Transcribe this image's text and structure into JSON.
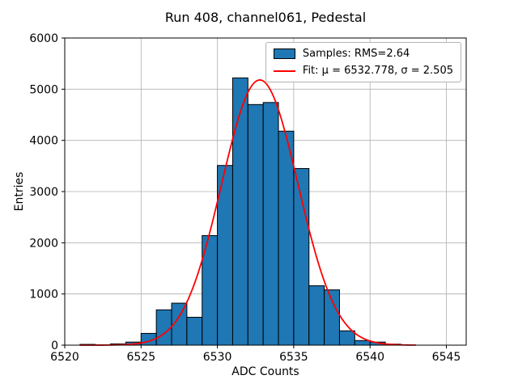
{
  "chart_data": {
    "type": "bar",
    "subtype": "histogram",
    "title": "Run 408, channel061, Pedestal",
    "xlabel": "ADC Counts",
    "ylabel": "Entries",
    "xlim": [
      6520,
      6546.3
    ],
    "ylim": [
      0,
      6000
    ],
    "xticks": [
      6520,
      6525,
      6530,
      6535,
      6540,
      6545
    ],
    "yticks": [
      0,
      1000,
      2000,
      3000,
      4000,
      5000,
      6000
    ],
    "grid": true,
    "bin_width": 1,
    "bins": [
      6521,
      6522,
      6523,
      6524,
      6525,
      6526,
      6527,
      6528,
      6529,
      6530,
      6531,
      6532,
      6533,
      6534,
      6535,
      6536,
      6537,
      6538,
      6539,
      6540,
      6541
    ],
    "counts": [
      15,
      0,
      25,
      60,
      230,
      690,
      820,
      545,
      2140,
      3510,
      5220,
      4700,
      4740,
      4180,
      3450,
      1160,
      1080,
      280,
      90,
      60,
      20
    ],
    "fit": {
      "type": "gaussian",
      "mu": 6532.778,
      "sigma": 2.505,
      "amplitude": 5180,
      "x_range": [
        6521,
        6543
      ]
    },
    "legend": {
      "position": "upper right",
      "entries": [
        {
          "label": "Samples: RMS=2.64",
          "marker": "patch",
          "color": "#1f77b4"
        },
        {
          "label": "Fit: μ = 6532.778, σ = 2.505",
          "marker": "line",
          "color": "#ff0000"
        }
      ]
    },
    "colors": {
      "bar_fill": "#1f77b4",
      "bar_edge": "#000000",
      "fit_line": "#ff0000",
      "grid": "#b0b0b0"
    }
  }
}
